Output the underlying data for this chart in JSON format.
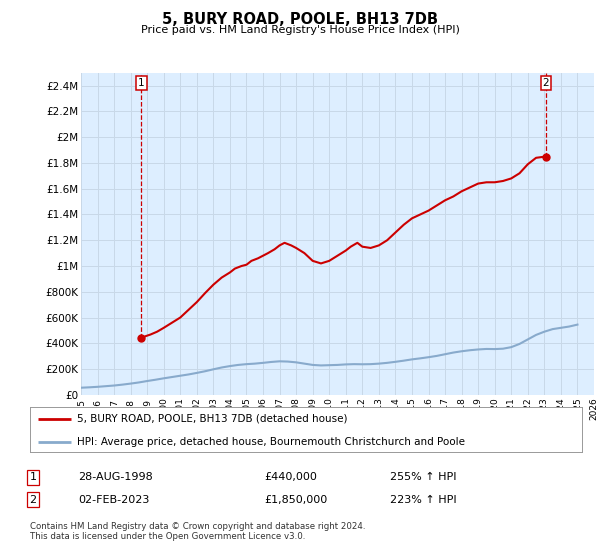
{
  "title": "5, BURY ROAD, POOLE, BH13 7DB",
  "subtitle": "Price paid vs. HM Land Registry's House Price Index (HPI)",
  "xlim": [
    1995,
    2026
  ],
  "ylim": [
    0,
    2500000
  ],
  "yticks": [
    0,
    200000,
    400000,
    600000,
    800000,
    1000000,
    1200000,
    1400000,
    1600000,
    1800000,
    2000000,
    2200000,
    2400000
  ],
  "ytick_labels": [
    "£0",
    "£200K",
    "£400K",
    "£600K",
    "£800K",
    "£1M",
    "£1.2M",
    "£1.4M",
    "£1.6M",
    "£1.8M",
    "£2M",
    "£2.2M",
    "£2.4M"
  ],
  "xtick_years": [
    1995,
    1996,
    1997,
    1998,
    1999,
    2000,
    2001,
    2002,
    2003,
    2004,
    2005,
    2006,
    2007,
    2008,
    2009,
    2010,
    2011,
    2012,
    2013,
    2014,
    2015,
    2016,
    2017,
    2018,
    2019,
    2020,
    2021,
    2022,
    2023,
    2024,
    2025,
    2026
  ],
  "grid_color": "#c8d8e8",
  "plot_bg": "#ddeeff",
  "red_line_color": "#cc0000",
  "blue_line_color": "#88aacc",
  "purchase1_x": 1998.65,
  "purchase1_y": 440000,
  "purchase2_x": 2023.09,
  "purchase2_y": 1850000,
  "legend_line1": "5, BURY ROAD, POOLE, BH13 7DB (detached house)",
  "legend_line2": "HPI: Average price, detached house, Bournemouth Christchurch and Poole",
  "table_row1": [
    "1",
    "28-AUG-1998",
    "£440,000",
    "255% ↑ HPI"
  ],
  "table_row2": [
    "2",
    "02-FEB-2023",
    "£1,850,000",
    "223% ↑ HPI"
  ],
  "footnote": "Contains HM Land Registry data © Crown copyright and database right 2024.\nThis data is licensed under the Open Government Licence v3.0.",
  "hpi_line": {
    "x": [
      1995.0,
      1995.5,
      1996.0,
      1996.5,
      1997.0,
      1997.5,
      1998.0,
      1998.5,
      1999.0,
      1999.5,
      2000.0,
      2000.5,
      2001.0,
      2001.5,
      2002.0,
      2002.5,
      2003.0,
      2003.5,
      2004.0,
      2004.5,
      2005.0,
      2005.5,
      2006.0,
      2006.5,
      2007.0,
      2007.5,
      2008.0,
      2008.5,
      2009.0,
      2009.5,
      2010.0,
      2010.5,
      2011.0,
      2011.5,
      2012.0,
      2012.5,
      2013.0,
      2013.5,
      2014.0,
      2014.5,
      2015.0,
      2015.5,
      2016.0,
      2016.5,
      2017.0,
      2017.5,
      2018.0,
      2018.5,
      2019.0,
      2019.5,
      2020.0,
      2020.5,
      2021.0,
      2021.5,
      2022.0,
      2022.5,
      2023.0,
      2023.5,
      2024.0,
      2024.5,
      2025.0
    ],
    "y": [
      55000,
      58000,
      62000,
      67000,
      72000,
      79000,
      87000,
      96000,
      107000,
      117000,
      128000,
      138000,
      148000,
      158000,
      170000,
      183000,
      198000,
      212000,
      223000,
      232000,
      238000,
      242000,
      248000,
      255000,
      260000,
      258000,
      252000,
      242000,
      232000,
      228000,
      230000,
      232000,
      236000,
      238000,
      237000,
      238000,
      242000,
      248000,
      256000,
      265000,
      275000,
      283000,
      292000,
      302000,
      315000,
      328000,
      338000,
      346000,
      352000,
      356000,
      355000,
      358000,
      370000,
      395000,
      430000,
      465000,
      490000,
      510000,
      520000,
      530000,
      545000
    ]
  },
  "price_line": {
    "x": [
      1998.65,
      1998.9,
      1999.2,
      1999.6,
      2000.0,
      2000.5,
      2001.0,
      2001.5,
      2002.0,
      2002.5,
      2003.0,
      2003.5,
      2004.0,
      2004.3,
      2004.7,
      2005.0,
      2005.3,
      2005.7,
      2006.0,
      2006.3,
      2006.7,
      2007.0,
      2007.3,
      2007.7,
      2008.0,
      2008.5,
      2009.0,
      2009.5,
      2010.0,
      2010.5,
      2011.0,
      2011.3,
      2011.7,
      2012.0,
      2012.5,
      2013.0,
      2013.5,
      2014.0,
      2014.5,
      2015.0,
      2015.5,
      2016.0,
      2016.5,
      2017.0,
      2017.5,
      2018.0,
      2018.5,
      2019.0,
      2019.5,
      2020.0,
      2020.5,
      2021.0,
      2021.5,
      2022.0,
      2022.5,
      2023.09
    ],
    "y": [
      440000,
      455000,
      468000,
      490000,
      520000,
      560000,
      600000,
      660000,
      720000,
      790000,
      855000,
      910000,
      950000,
      980000,
      1000000,
      1010000,
      1040000,
      1060000,
      1080000,
      1100000,
      1130000,
      1160000,
      1180000,
      1160000,
      1140000,
      1100000,
      1040000,
      1020000,
      1040000,
      1080000,
      1120000,
      1150000,
      1180000,
      1150000,
      1140000,
      1160000,
      1200000,
      1260000,
      1320000,
      1370000,
      1400000,
      1430000,
      1470000,
      1510000,
      1540000,
      1580000,
      1610000,
      1640000,
      1650000,
      1650000,
      1660000,
      1680000,
      1720000,
      1790000,
      1840000,
      1850000
    ]
  }
}
